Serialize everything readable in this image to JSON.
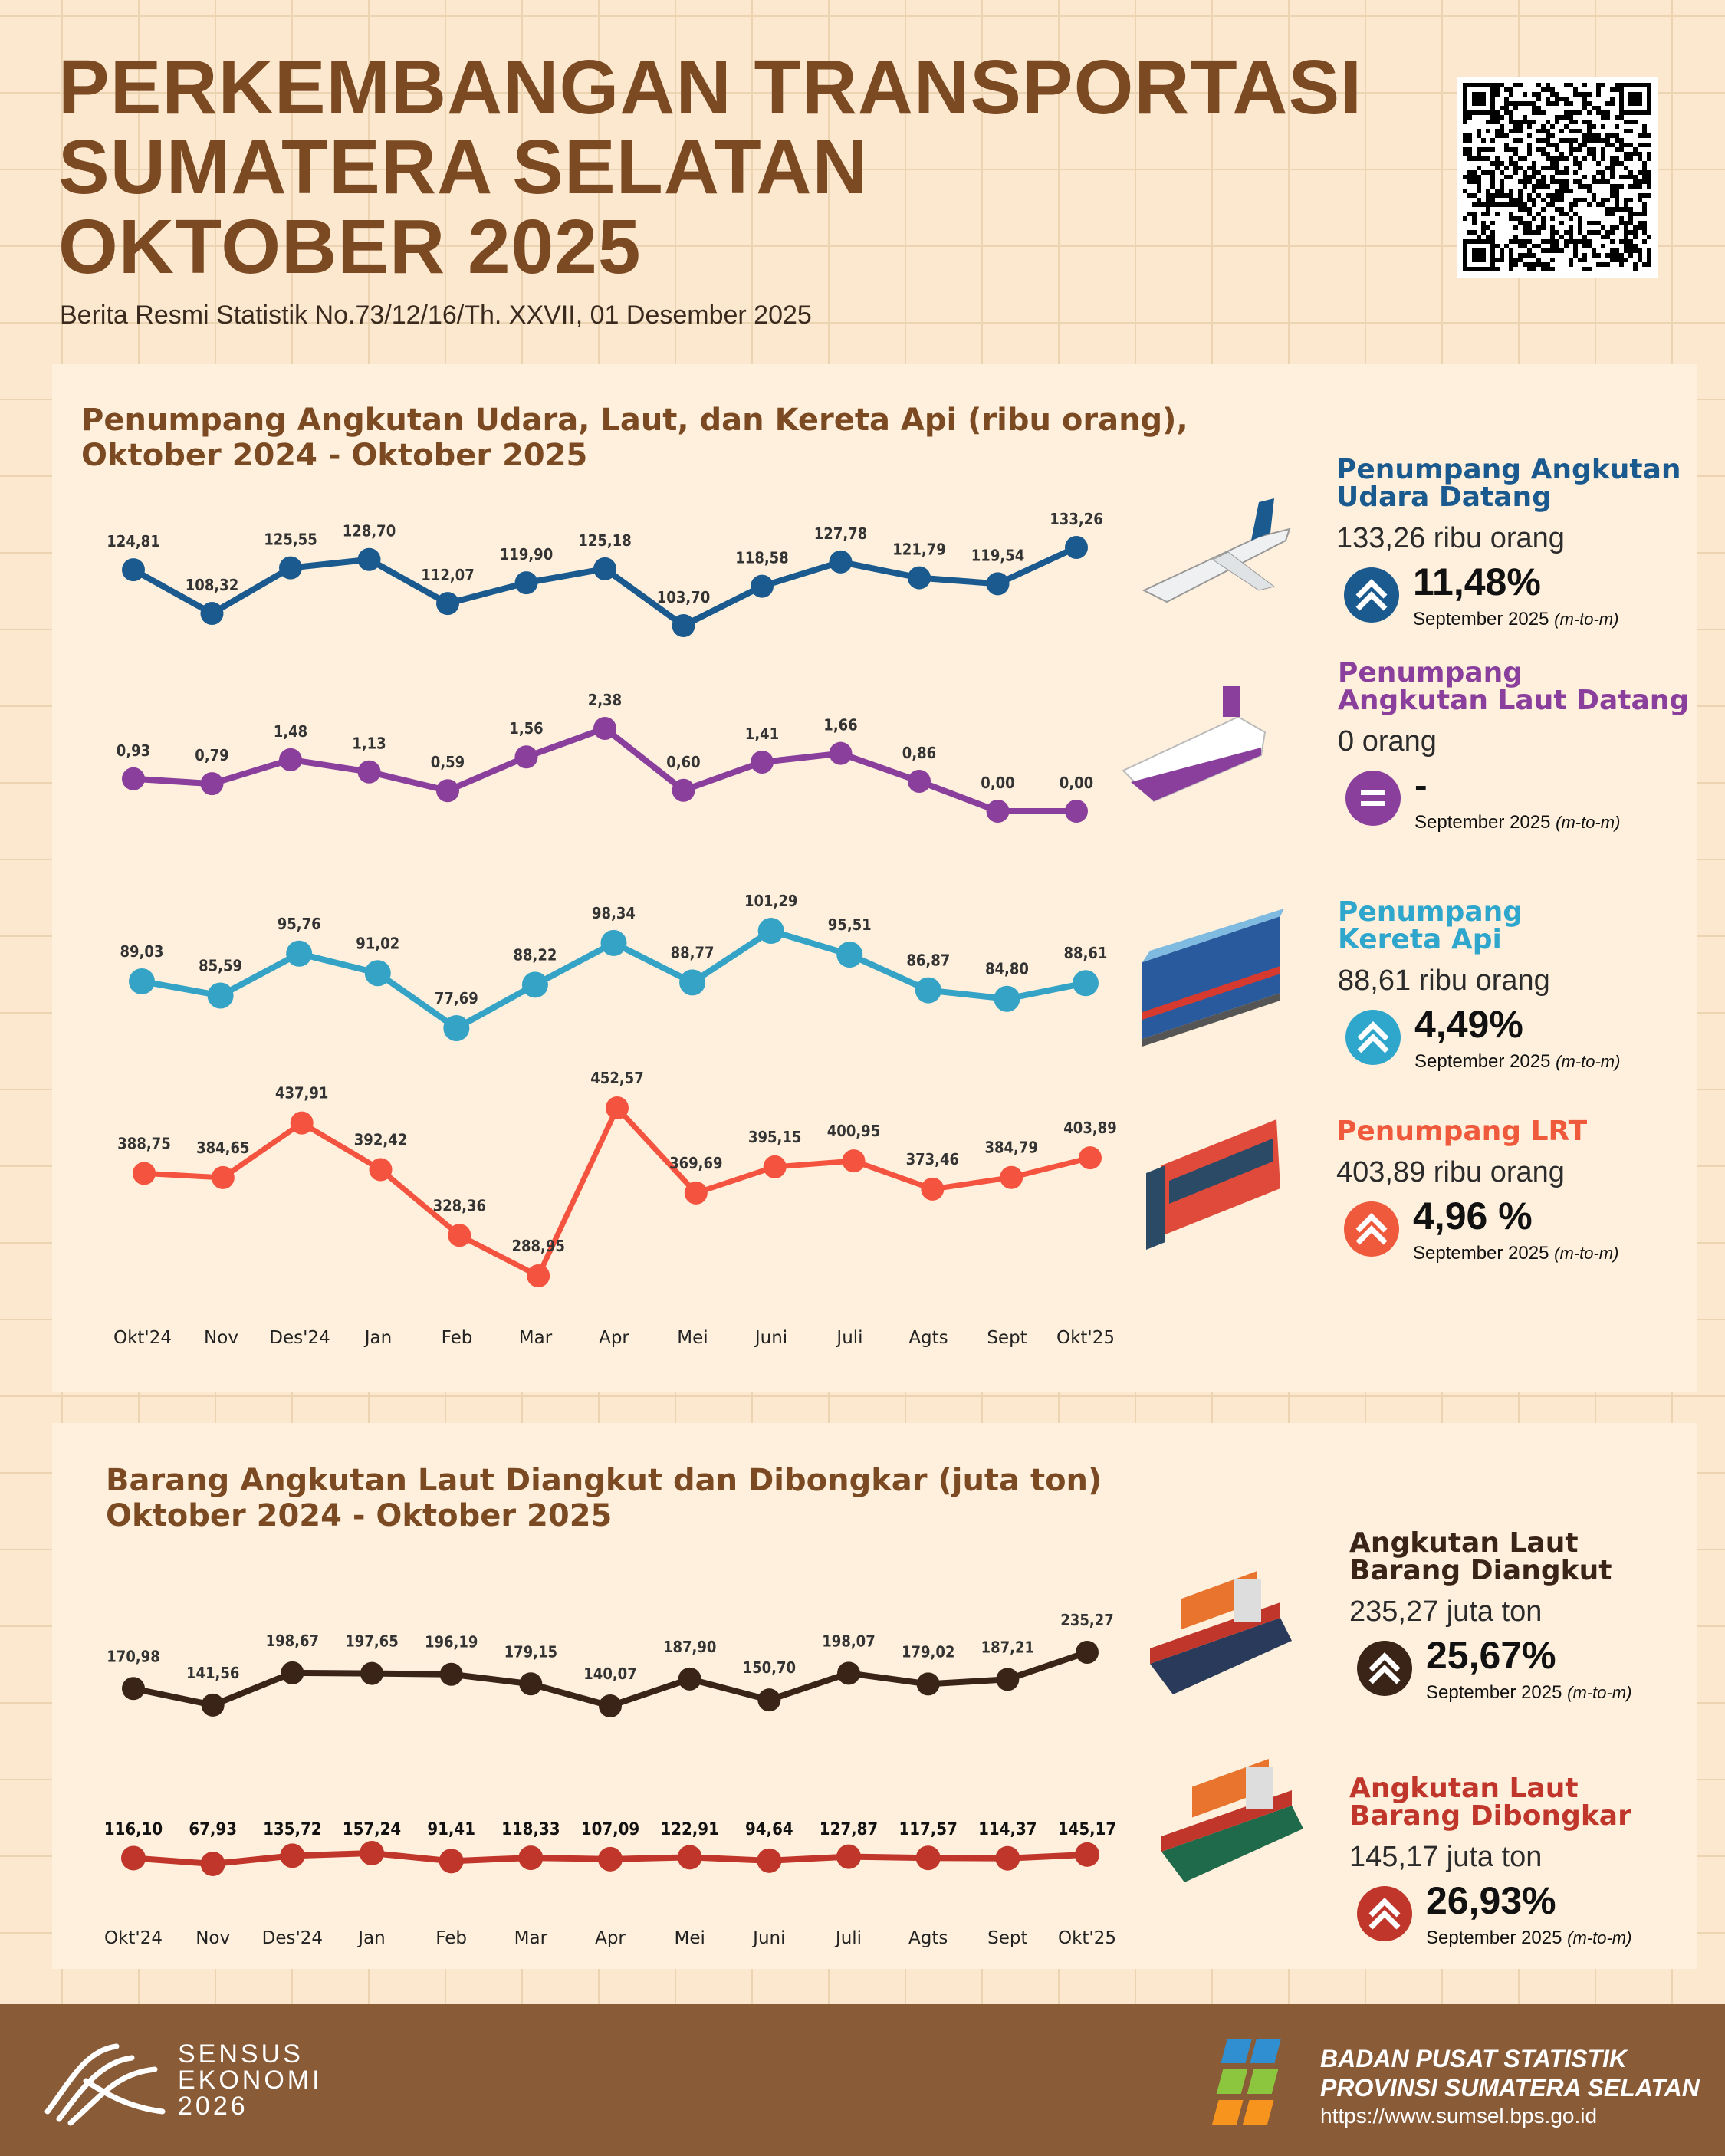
{
  "header": {
    "title_lines": [
      "PERKEMBANGAN TRANSPORTASI",
      "SUMATERA SELATAN",
      "OKTOBER 2025"
    ],
    "subtitle": "Berita Resmi Statistik No.73/12/16/Th. XXVII, 01 Desember 2025"
  },
  "panel1": {
    "title_lines": [
      "Penumpang Angkutan Udara, Laut, dan Kereta Api (ribu orang),",
      "Oktober 2024 - Oktober 2025"
    ],
    "stats": [
      {
        "heading": [
          "Penumpang Angkutan",
          "Udara Datang"
        ],
        "value": "133,26 ribu orang",
        "change": "11,48%",
        "note": "September 2025",
        "note_em": "(m-to-m)",
        "color": "#1b5a8e",
        "icon": "double-chevron-up-icon"
      },
      {
        "heading": [
          "Penumpang",
          "Angkutan Laut Datang"
        ],
        "value": "0  orang",
        "change": "-",
        "note": "September 2025",
        "note_em": "(m-to-m)",
        "color": "#8a3f9c",
        "icon": "equals-icon"
      },
      {
        "heading": [
          "Penumpang",
          "Kereta Api"
        ],
        "value": "88,61 ribu orang",
        "change": "4,49%",
        "note": "September 2025",
        "note_em": "(m-to-m)",
        "color": "#2fa6cc",
        "icon": "double-chevron-up-icon"
      },
      {
        "heading": [
          "Penumpang LRT"
        ],
        "value": "403,89 ribu orang",
        "change": "4,96 %",
        "note": "September 2025",
        "note_em": "(m-to-m)",
        "color": "#f05a3c",
        "icon": "double-chevron-up-icon"
      }
    ]
  },
  "panel2": {
    "title_lines": [
      "Barang Angkutan Laut Diangkut dan Dibongkar (juta ton)",
      "Oktober 2024 - Oktober 2025"
    ],
    "stats": [
      {
        "heading": [
          "Angkutan Laut",
          "Barang Diangkut"
        ],
        "value": "235,27 juta ton",
        "change": "25,67%",
        "note": "September 2025",
        "note_em": "(m-to-m)",
        "color": "#3a2418",
        "headcolor": "#3a2418",
        "icon": "double-chevron-up-icon"
      },
      {
        "heading": [
          "Angkutan Laut",
          "Barang Dibongkar"
        ],
        "value": "145,17 juta ton",
        "change": "26,93%",
        "note": "September 2025",
        "note_em": "(m-to-m)",
        "color": "#c0362b",
        "headcolor": "#c0362b",
        "icon": "double-chevron-up-icon"
      }
    ]
  },
  "chart_data": [
    {
      "type": "line",
      "categories": [
        "Okt'24",
        "Nov",
        "Des'24",
        "Jan",
        "Feb",
        "Mar",
        "Apr",
        "Mei",
        "Juni",
        "Juli",
        "Agts",
        "Sept",
        "Okt'25"
      ],
      "series": [
        {
          "name": "Penumpang Angkutan Udara Datang",
          "color": "#1b5a8e",
          "values": [
            124.81,
            108.32,
            125.55,
            128.7,
            112.07,
            119.9,
            125.18,
            103.7,
            118.58,
            127.78,
            121.79,
            119.54,
            133.26
          ],
          "labels": [
            "124,81",
            "108,32",
            "125,55",
            "128,70",
            "112,07",
            "119,90",
            "125,18",
            "103,70",
            "118,58",
            "127,78",
            "121,79",
            "119,54",
            "133,26"
          ]
        },
        {
          "name": "Penumpang Angkutan Laut Datang",
          "color": "#8a3f9c",
          "values": [
            0.93,
            0.79,
            1.48,
            1.13,
            0.59,
            1.56,
            2.38,
            0.6,
            1.41,
            1.66,
            0.86,
            0.0,
            0.0
          ],
          "labels": [
            "0,93",
            "0,79",
            "1,48",
            "1,13",
            "0,59",
            "1,56",
            "2,38",
            "0,60",
            "1,41",
            "1,66",
            "0,86",
            "0,00",
            "0,00"
          ]
        },
        {
          "name": "Penumpang Kereta Api",
          "color": "#34a3c6",
          "values": [
            89.03,
            85.59,
            95.76,
            91.02,
            77.69,
            88.22,
            98.34,
            88.77,
            101.29,
            95.51,
            86.87,
            84.8,
            88.61
          ],
          "labels": [
            "89,03",
            "85,59",
            "95,76",
            "91,02",
            "77,69",
            "88,22",
            "98,34",
            "88,77",
            "101,29",
            "95,51",
            "86,87",
            "84,80",
            "88,61"
          ]
        },
        {
          "name": "Penumpang LRT",
          "color": "#f4533f",
          "values": [
            388.75,
            384.65,
            437.91,
            392.42,
            328.36,
            288.95,
            452.57,
            369.69,
            395.15,
            400.95,
            373.46,
            384.79,
            403.89
          ],
          "labels": [
            "388,75",
            "384,65",
            "437,91",
            "392,42",
            "328,36",
            "288,95",
            "452,57",
            "369,69",
            "395,15",
            "400,95",
            "373,46",
            "384,79",
            "403,89"
          ]
        }
      ]
    },
    {
      "type": "line",
      "categories": [
        "Okt'24",
        "Nov",
        "Des'24",
        "Jan",
        "Feb",
        "Mar",
        "Apr",
        "Mei",
        "Juni",
        "Juli",
        "Agts",
        "Sept",
        "Okt'25"
      ],
      "series": [
        {
          "name": "Angkutan Laut Barang Diangkut",
          "color": "#3a2418",
          "values": [
            170.98,
            141.56,
            198.67,
            197.65,
            196.19,
            179.15,
            140.07,
            187.9,
            150.7,
            198.07,
            179.02,
            187.21,
            235.27
          ],
          "labels": [
            "170,98",
            "141,56",
            "198,67",
            "197,65",
            "196,19",
            "179,15",
            "140,07",
            "187,90",
            "150,70",
            "198,07",
            "179,02",
            "187,21",
            "235,27"
          ]
        },
        {
          "name": "Angkutan Laut Barang Dibongkar",
          "color": "#c0362b",
          "values": [
            116.1,
            67.93,
            135.72,
            157.24,
            91.41,
            118.33,
            107.09,
            122.91,
            94.64,
            127.87,
            117.57,
            114.37,
            145.17
          ],
          "labels": [
            "116,10",
            "67,93",
            "135,72",
            "157,24",
            "91,41",
            "118,33",
            "107,09",
            "122,91",
            "94,64",
            "127,87",
            "117,57",
            "114,37",
            "145,17"
          ]
        }
      ]
    }
  ],
  "footer": {
    "logo_left": [
      "SENSUS",
      "EKONOMI",
      "2026"
    ],
    "org": [
      "BADAN PUSAT STATISTIK",
      "PROVINSI SUMATERA SELATAN"
    ],
    "url": "https://www.sumsel.bps.go.id"
  }
}
